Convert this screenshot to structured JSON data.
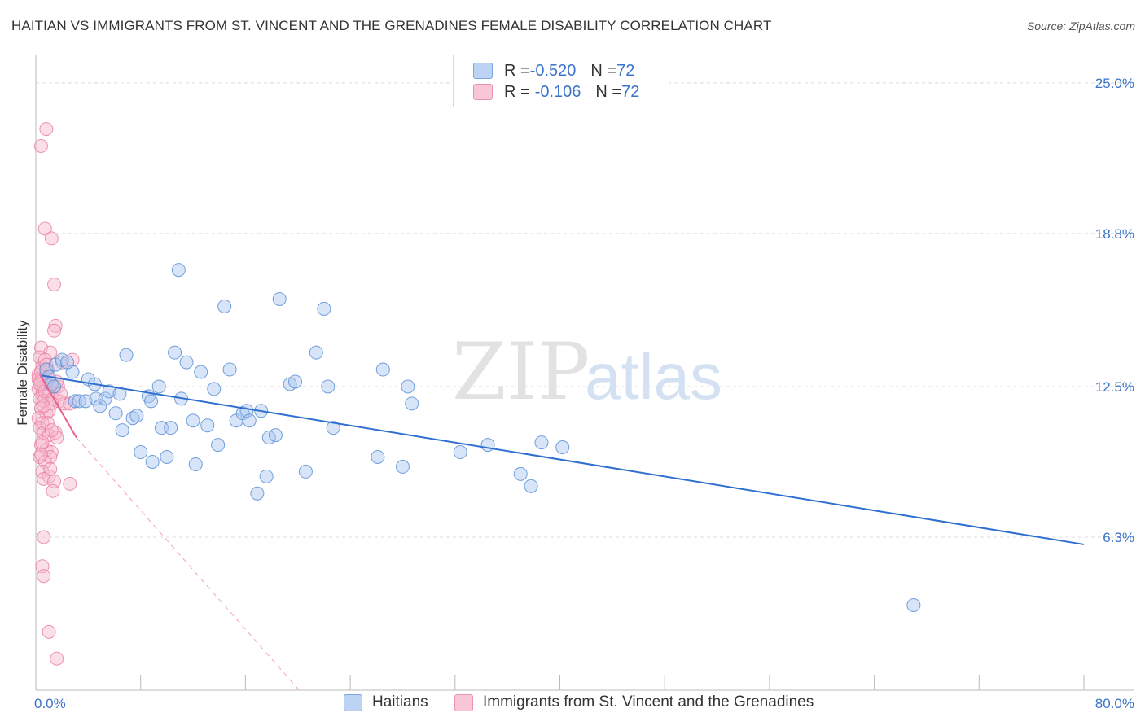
{
  "header": {
    "title": "HAITIAN VS IMMIGRANTS FROM ST. VINCENT AND THE GRENADINES FEMALE DISABILITY CORRELATION CHART",
    "source": "Source: ZipAtlas.com"
  },
  "watermark": {
    "zip": "ZIP",
    "atlas": "atlas"
  },
  "legend_top": {
    "rows": [
      {
        "r_label": "R = ",
        "r_value": "-0.520",
        "n_label": "N = ",
        "n_value": "72"
      },
      {
        "r_label": "R = ",
        "r_value": "-0.106",
        "n_label": "N = ",
        "n_value": "72"
      }
    ]
  },
  "legend_bottom": {
    "items": [
      "Haitians",
      "Immigrants from St. Vincent and the Grenadines"
    ]
  },
  "colors": {
    "blue_fill": "#a9c6f0",
    "blue_stroke": "#5b8fd6",
    "blue_line": "#2f6fcf",
    "pink_fill": "#f6b8cc",
    "pink_stroke": "#e87aa0",
    "pink_line": "#e8608f",
    "axis_text": "#3b74c9",
    "grid": "#dcdcdc"
  },
  "chart_data": {
    "type": "scatter",
    "xlabel": "",
    "ylabel": "Female Disability",
    "xlim": [
      0,
      80
    ],
    "ylim": [
      0,
      25.8
    ],
    "x_tick_labels": [
      {
        "value": 0,
        "label": "0.0%"
      },
      {
        "value": 80,
        "label": "80.0%"
      }
    ],
    "y_tick_labels": [
      {
        "value": 6.3,
        "label": "6.3%"
      },
      {
        "value": 12.5,
        "label": "12.5%"
      },
      {
        "value": 18.8,
        "label": "18.8%"
      },
      {
        "value": 25.0,
        "label": "25.0%"
      }
    ],
    "grid": true,
    "legend_position": "top-center and bottom",
    "series": [
      {
        "name": "Haitians",
        "r": -0.52,
        "n": 72,
        "trend": {
          "x0": 0.5,
          "y0": 12.95,
          "x1": 80,
          "y1": 6.0
        },
        "points": [
          [
            0.8,
            13.2
          ],
          [
            1.0,
            12.9
          ],
          [
            1.2,
            12.6
          ],
          [
            1.5,
            13.4
          ],
          [
            2.0,
            13.6
          ],
          [
            2.8,
            13.1
          ],
          [
            3.0,
            11.9
          ],
          [
            3.3,
            11.9
          ],
          [
            3.8,
            11.9
          ],
          [
            4.0,
            12.8
          ],
          [
            4.5,
            12.6
          ],
          [
            4.6,
            12.0
          ],
          [
            4.9,
            11.7
          ],
          [
            5.3,
            12.0
          ],
          [
            5.6,
            12.3
          ],
          [
            6.1,
            11.4
          ],
          [
            6.4,
            12.2
          ],
          [
            6.6,
            10.7
          ],
          [
            6.9,
            13.8
          ],
          [
            7.4,
            11.2
          ],
          [
            7.7,
            11.3
          ],
          [
            8.0,
            9.8
          ],
          [
            8.6,
            12.1
          ],
          [
            8.8,
            11.9
          ],
          [
            8.9,
            9.4
          ],
          [
            9.4,
            12.5
          ],
          [
            9.6,
            10.8
          ],
          [
            10.0,
            9.6
          ],
          [
            10.3,
            10.8
          ],
          [
            10.6,
            13.9
          ],
          [
            10.9,
            17.3
          ],
          [
            11.1,
            12.0
          ],
          [
            11.5,
            13.5
          ],
          [
            12.0,
            11.1
          ],
          [
            12.2,
            9.3
          ],
          [
            12.6,
            13.1
          ],
          [
            13.1,
            10.9
          ],
          [
            13.6,
            12.4
          ],
          [
            13.9,
            10.1
          ],
          [
            14.4,
            15.8
          ],
          [
            14.8,
            13.2
          ],
          [
            15.3,
            11.1
          ],
          [
            15.8,
            11.4
          ],
          [
            16.1,
            11.5
          ],
          [
            16.3,
            11.1
          ],
          [
            16.9,
            8.1
          ],
          [
            17.2,
            11.5
          ],
          [
            17.6,
            8.8
          ],
          [
            17.8,
            10.4
          ],
          [
            18.3,
            10.5
          ],
          [
            18.6,
            16.1
          ],
          [
            19.4,
            12.6
          ],
          [
            19.8,
            12.7
          ],
          [
            20.6,
            9.0
          ],
          [
            21.4,
            13.9
          ],
          [
            22.0,
            15.7
          ],
          [
            22.3,
            12.5
          ],
          [
            22.7,
            10.8
          ],
          [
            26.5,
            13.2
          ],
          [
            26.1,
            9.6
          ],
          [
            28.0,
            9.2
          ],
          [
            28.4,
            12.5
          ],
          [
            28.7,
            11.8
          ],
          [
            32.4,
            9.8
          ],
          [
            34.5,
            10.1
          ],
          [
            37.0,
            8.9
          ],
          [
            37.8,
            8.4
          ],
          [
            38.6,
            10.2
          ],
          [
            40.2,
            10.0
          ],
          [
            67.0,
            3.5
          ],
          [
            1.4,
            12.5
          ],
          [
            2.4,
            13.5
          ]
        ]
      },
      {
        "name": "Immigrants from St. Vincent and the Grenadines",
        "r": -0.106,
        "n": 72,
        "trend_solid": {
          "x0": 0.3,
          "y0": 13.0,
          "x1": 3.1,
          "y1": 10.4
        },
        "trend_dashed": {
          "x0": 3.1,
          "y0": 10.4,
          "x1": 20.1,
          "y1": 0.0
        },
        "points": [
          [
            0.4,
            22.4
          ],
          [
            0.8,
            23.1
          ],
          [
            0.7,
            19.0
          ],
          [
            1.2,
            18.6
          ],
          [
            1.4,
            16.7
          ],
          [
            1.5,
            15.0
          ],
          [
            1.4,
            14.8
          ],
          [
            0.4,
            14.1
          ],
          [
            1.1,
            13.9
          ],
          [
            0.3,
            13.7
          ],
          [
            0.7,
            13.6
          ],
          [
            2.0,
            13.5
          ],
          [
            2.8,
            13.6
          ],
          [
            0.5,
            13.3
          ],
          [
            0.9,
            13.2
          ],
          [
            0.2,
            13.0
          ],
          [
            0.6,
            12.9
          ],
          [
            1.0,
            12.8
          ],
          [
            0.3,
            12.7
          ],
          [
            0.8,
            12.6
          ],
          [
            1.4,
            12.5
          ],
          [
            1.7,
            12.5
          ],
          [
            0.2,
            12.4
          ],
          [
            0.5,
            12.2
          ],
          [
            0.9,
            12.1
          ],
          [
            0.3,
            12.0
          ],
          [
            0.6,
            11.9
          ],
          [
            1.2,
            11.8
          ],
          [
            1.8,
            11.9
          ],
          [
            2.2,
            11.8
          ],
          [
            2.6,
            11.8
          ],
          [
            0.4,
            11.6
          ],
          [
            0.8,
            11.4
          ],
          [
            1.0,
            11.5
          ],
          [
            0.2,
            11.2
          ],
          [
            0.5,
            11.0
          ],
          [
            0.3,
            10.8
          ],
          [
            0.6,
            10.6
          ],
          [
            1.0,
            10.5
          ],
          [
            1.5,
            10.6
          ],
          [
            1.6,
            10.4
          ],
          [
            0.4,
            10.1
          ],
          [
            0.8,
            9.9
          ],
          [
            1.2,
            9.8
          ],
          [
            0.3,
            9.6
          ],
          [
            1.1,
            9.6
          ],
          [
            0.7,
            9.4
          ],
          [
            0.5,
            9.0
          ],
          [
            1.0,
            8.8
          ],
          [
            0.6,
            8.7
          ],
          [
            1.4,
            8.6
          ],
          [
            2.6,
            8.5
          ],
          [
            1.3,
            8.2
          ],
          [
            0.6,
            6.3
          ],
          [
            0.5,
            5.1
          ],
          [
            0.6,
            4.7
          ],
          [
            1.0,
            2.4
          ],
          [
            1.6,
            1.3
          ],
          [
            0.2,
            12.8
          ],
          [
            0.4,
            13.1
          ],
          [
            0.7,
            12.3
          ],
          [
            1.3,
            12.0
          ],
          [
            0.9,
            11.0
          ],
          [
            0.5,
            10.2
          ],
          [
            1.1,
            9.1
          ],
          [
            0.3,
            12.6
          ],
          [
            0.8,
            13.4
          ],
          [
            1.6,
            12.7
          ],
          [
            0.6,
            11.7
          ],
          [
            1.9,
            12.2
          ],
          [
            0.4,
            9.7
          ],
          [
            1.2,
            10.7
          ]
        ]
      }
    ]
  }
}
